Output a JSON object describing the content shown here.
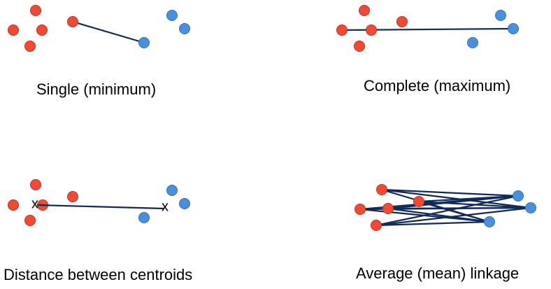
{
  "colors": {
    "cluster_a": "#f04a34",
    "cluster_a_edge": "#c7301f",
    "cluster_b": "#4a8fdb",
    "cluster_b_edge": "#3572b8",
    "link": "#102a5a"
  },
  "panels": [
    {
      "id": "single",
      "caption": "Single (minimum)",
      "link_type": "single"
    },
    {
      "id": "complete",
      "caption": "Complete (maximum)",
      "link_type": "complete"
    },
    {
      "id": "centroid",
      "caption": "Distance between centroids",
      "link_type": "centroid",
      "centroid_marker": "x"
    },
    {
      "id": "average",
      "caption": "Average (mean) linkage",
      "link_type": "average"
    }
  ]
}
